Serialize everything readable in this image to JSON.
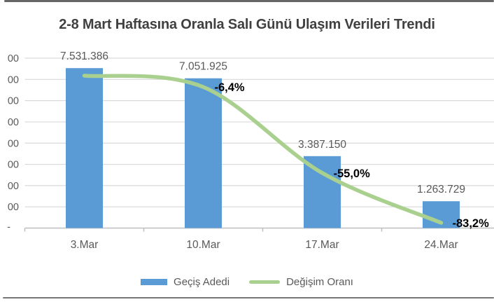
{
  "card": {
    "title": "2-8 Mart Haftasına Oranla Salı Günü Ulaşım Verileri Trendi"
  },
  "legend": {
    "items": [
      {
        "label": "Geçiş Adedi",
        "marker": "bar-swatch",
        "color": "#5b9bd5"
      },
      {
        "label": "Değişim Oranı",
        "marker": "line-swatch",
        "color": "#a9d08e"
      }
    ]
  },
  "chart_data": {
    "type": "combo",
    "title": "2-8 Mart Haftasına Oranla Salı Günü Ulaşım Verileri Trendi",
    "categories": [
      "3.Mar",
      "10.Mar",
      "17.Mar",
      "24.Mar"
    ],
    "series": [
      {
        "name": "Geçiş Adedi",
        "type": "bar",
        "color": "#5b9bd5",
        "values": [
          7531386,
          7051925,
          3387150,
          1263729
        ],
        "labels": [
          "7.531.386",
          "7.051.925",
          "3.387.150",
          "1.263.729"
        ]
      },
      {
        "name": "Değişim Oranı",
        "type": "line",
        "color": "#a9d08e",
        "values": [
          0,
          -6.4,
          -55.0,
          -83.2
        ],
        "labels": [
          "",
          "-6,4%",
          "-55,0%",
          "-83,2%"
        ]
      }
    ],
    "y_axis": {
      "min": 0,
      "max": 8000000,
      "step": 1000000,
      "visible_tick_texts": [
        "00",
        "00",
        "00",
        "00",
        "00",
        "00",
        "00",
        "00"
      ],
      "zero_tick_text": "-"
    },
    "grid": "horizontal",
    "legend_position": "bottom",
    "colors": {
      "bar": "#5b9bd5",
      "line": "#a9d08e",
      "gridline": "#d9d9d9",
      "axis": "#bfbfbf",
      "text_gray": "#595959",
      "title": "#404040",
      "percent_label": "#000000"
    }
  }
}
